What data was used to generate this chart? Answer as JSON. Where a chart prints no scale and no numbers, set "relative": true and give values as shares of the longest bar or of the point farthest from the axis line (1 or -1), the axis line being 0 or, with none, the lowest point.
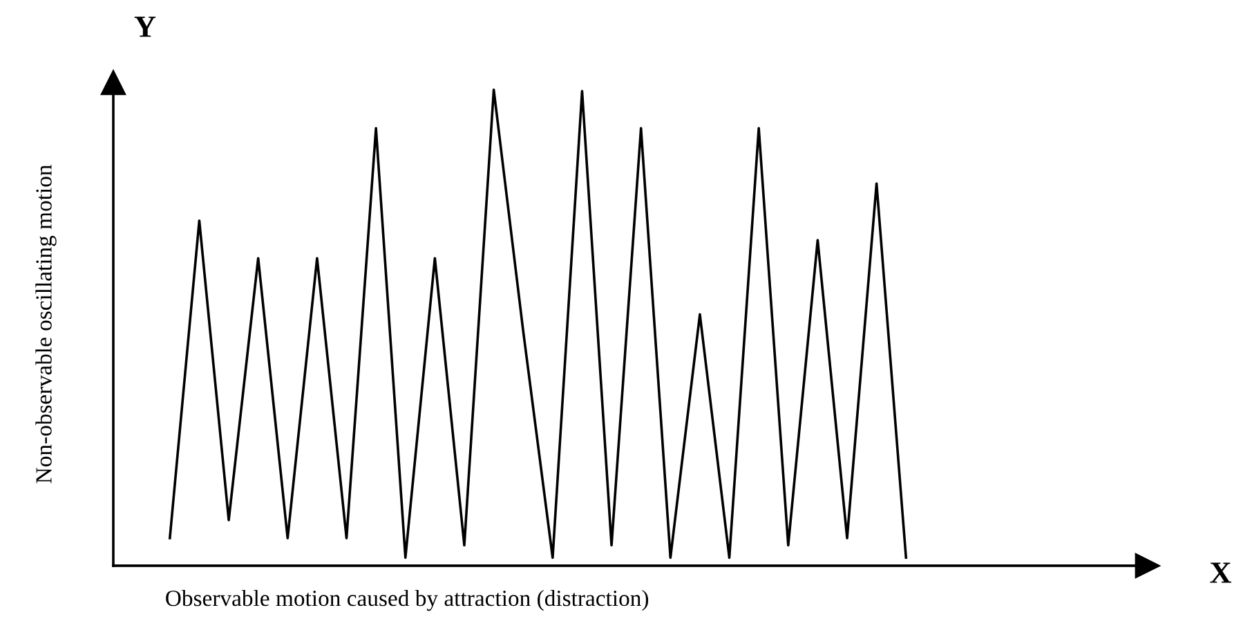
{
  "chart_data": {
    "type": "line",
    "relative": true,
    "xlabel": "Observable motion caused by attraction (distraction)",
    "ylabel": "Non-observable oscillating motion",
    "annotations": [
      "Y",
      "X"
    ],
    "categories": [
      null,
      null,
      null,
      null,
      null,
      null,
      null,
      null,
      null,
      null,
      null,
      null,
      null,
      null,
      null,
      null,
      null,
      null,
      null,
      null,
      null,
      null,
      null,
      null,
      null,
      null
    ],
    "series": [
      {
        "color": "#000000",
        "values": [
          0.058,
          0.725,
          0.096,
          0.646,
          0.058,
          0.646,
          0.058,
          0.919,
          0.017,
          0.646,
          0.043,
          1.0,
          0.493,
          0.017,
          0.997,
          0.043,
          0.919,
          0.017,
          0.528,
          0.017,
          0.919,
          0.043,
          0.684,
          0.058,
          0.803,
          0.017
        ]
      }
    ]
  }
}
